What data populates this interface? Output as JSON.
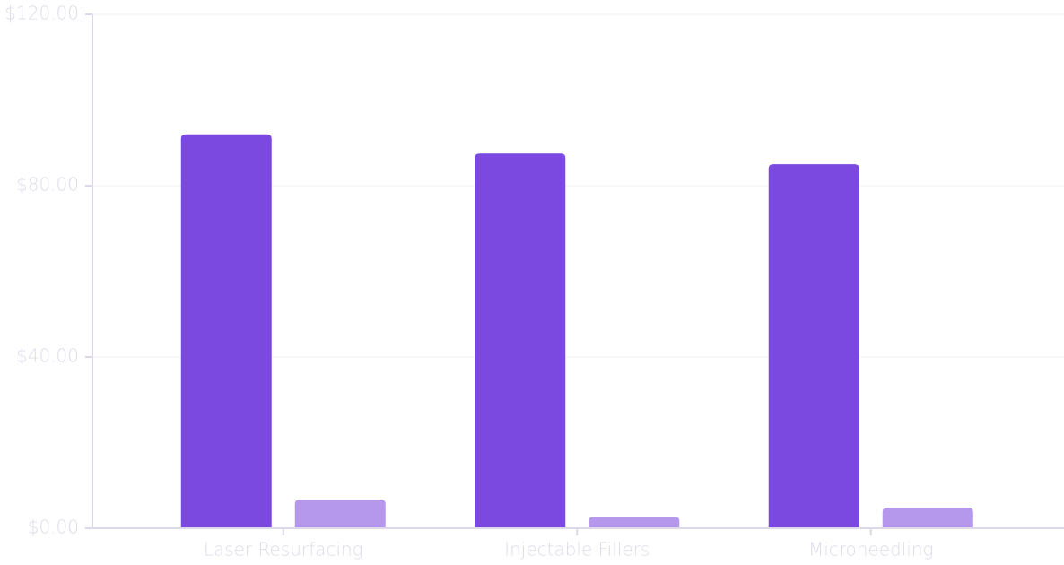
{
  "chart_data": {
    "type": "bar",
    "categories": [
      "Laser Resurfacing",
      "Injectable Fillers",
      "Microneedling"
    ],
    "series": [
      {
        "color": "#7b49e0",
        "values": [
          92,
          87.5,
          85
        ]
      },
      {
        "color": "#b597ec",
        "values": [
          6.7,
          2.7,
          4.8
        ]
      }
    ],
    "ylim": [
      0,
      120
    ],
    "yticks": [
      {
        "value": 0,
        "label": "$0.00"
      },
      {
        "value": 40,
        "label": "$40.00"
      },
      {
        "value": 80,
        "label": "$80.00"
      },
      {
        "value": 120,
        "label": "$120.00"
      }
    ],
    "grid": true
  }
}
